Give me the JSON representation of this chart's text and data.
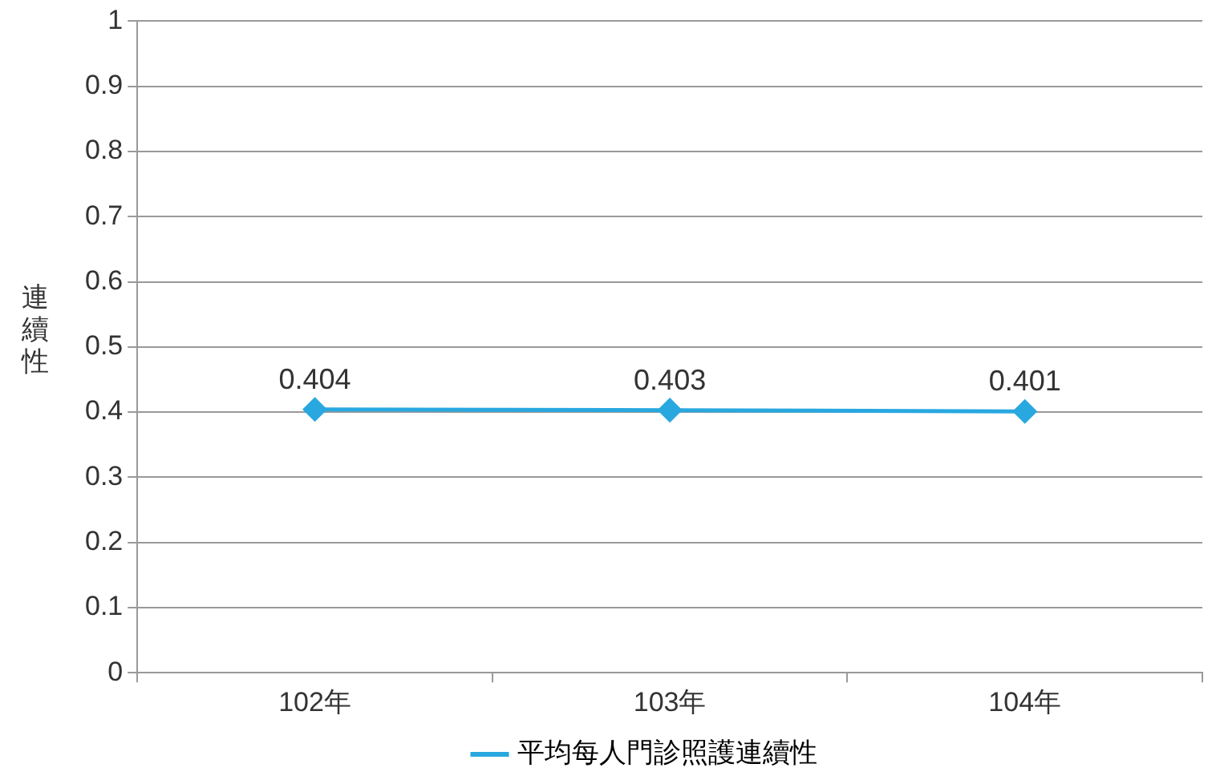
{
  "chart_data": {
    "type": "line",
    "ylabel": "連續性",
    "categories": [
      "102年",
      "103年",
      "104年"
    ],
    "series": [
      {
        "name": "平均每人門診照護連續性",
        "color": "#29a8e0",
        "values": [
          0.404,
          0.403,
          0.401
        ]
      }
    ],
    "ylim": [
      0,
      1
    ],
    "yticks": [
      0,
      0.1,
      0.2,
      0.3,
      0.4,
      0.5,
      0.6,
      0.7,
      0.8,
      0.9,
      1
    ],
    "grid": "y",
    "legend": "bottom",
    "marker": "diamond",
    "line_style": "solid",
    "data_labels": true
  }
}
